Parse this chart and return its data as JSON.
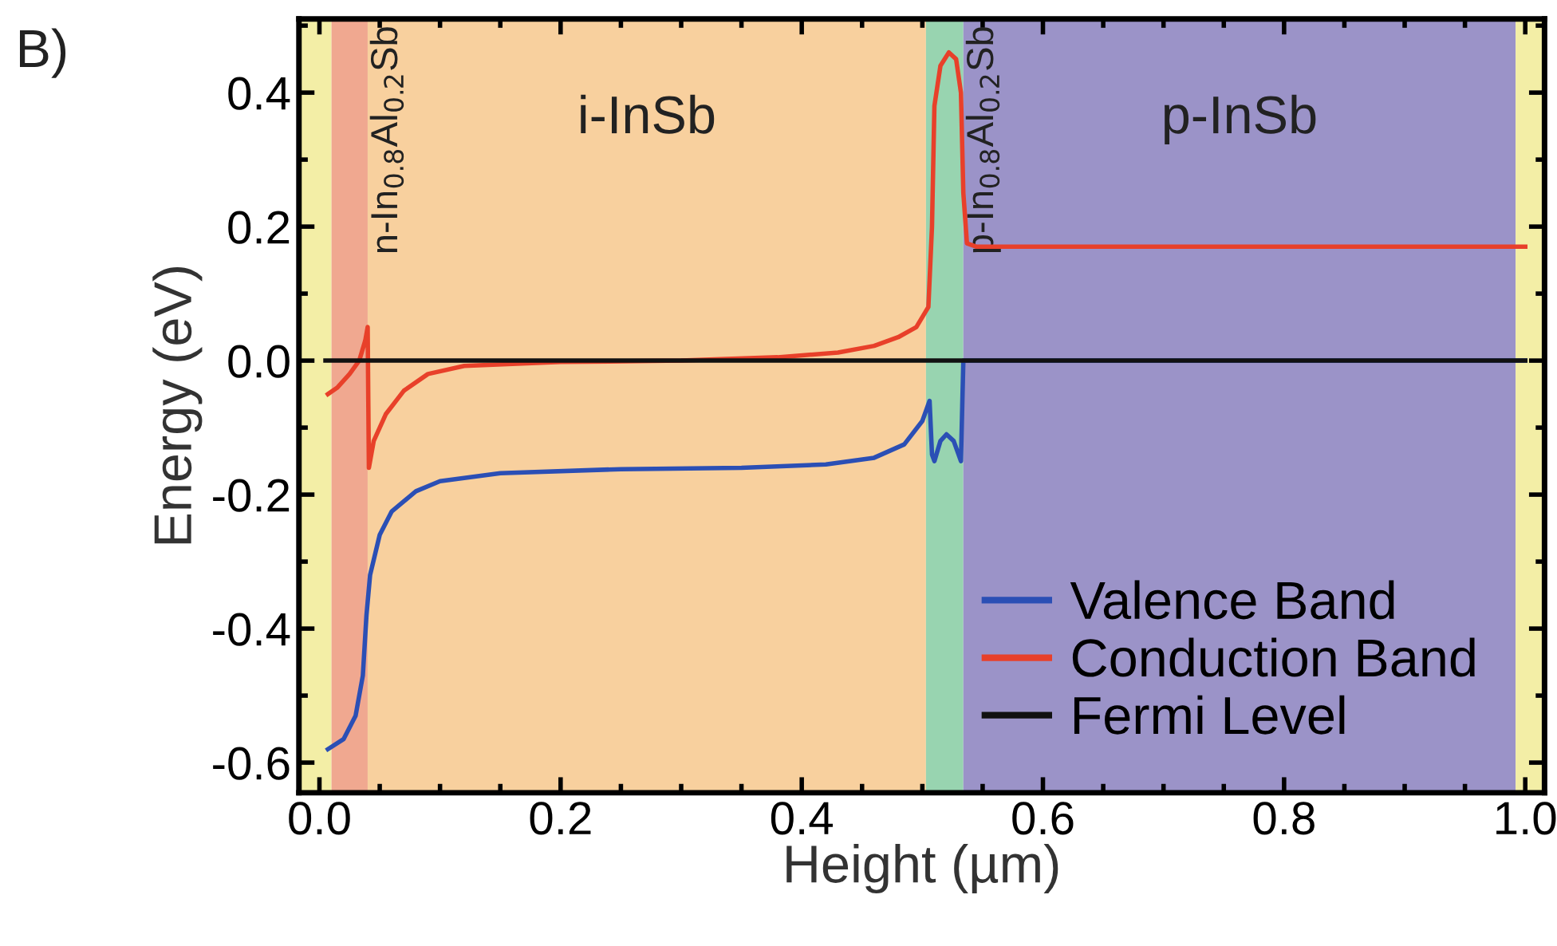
{
  "chart_data": {
    "type": "line",
    "xlabel": "Height (µm)",
    "ylabel": "Energy (eV)",
    "annotations": [
      "B)"
    ],
    "xlim": [
      -0.017,
      1.016
    ],
    "ylim": [
      -0.645,
      0.51
    ],
    "xticks": [
      {
        "value": 0.0,
        "label": "0.0"
      },
      0.2,
      0.4,
      0.6,
      0.8,
      {
        "value": 1.0,
        "label": "1.0"
      }
    ],
    "yticks": [
      -0.6,
      -0.4,
      -0.2,
      {
        "value": 0.0,
        "label": "0.0"
      },
      0.2,
      0.4
    ],
    "bands": [
      {
        "axis": "x",
        "from": -0.017,
        "to": 0.01,
        "color": "#f3eea6"
      },
      {
        "axis": "x",
        "from": 0.01,
        "to": 0.04,
        "color": "#f0a890",
        "label": "n-In$_{0.8}$Al$_{0.2}$Sb"
      },
      {
        "axis": "x",
        "from": 0.04,
        "to": 0.503,
        "color": "#f8d09e",
        "label": "i-InSb"
      },
      {
        "axis": "x",
        "from": 0.503,
        "to": 0.534,
        "color": "#98d4b0",
        "label": "p-In$_{0.8}$Al$_{0.2}$Sb"
      },
      {
        "axis": "x",
        "from": 0.534,
        "to": 0.992,
        "color": "#9b93c8",
        "label": "p-InSb"
      },
      {
        "axis": "x",
        "from": 0.992,
        "to": 1.016,
        "color": "#f3eea6"
      }
    ],
    "series": [
      {
        "name": "Valence Band",
        "color": "#2b4fb5",
        "x": [
          0.007,
          0.02,
          0.03,
          0.036,
          0.039,
          0.042,
          0.05,
          0.06,
          0.08,
          0.1,
          0.15,
          0.25,
          0.35,
          0.42,
          0.46,
          0.485,
          0.5,
          0.506,
          0.508,
          0.51,
          0.515,
          0.52,
          0.526,
          0.532,
          0.534,
          1.0
        ],
        "values": [
          -0.58,
          -0.565,
          -0.53,
          -0.47,
          -0.38,
          -0.32,
          -0.26,
          -0.225,
          -0.195,
          -0.18,
          -0.168,
          -0.162,
          -0.16,
          -0.155,
          -0.145,
          -0.125,
          -0.09,
          -0.06,
          -0.14,
          -0.15,
          -0.12,
          -0.11,
          -0.12,
          -0.15,
          0.0,
          0.0
        ]
      },
      {
        "name": "Conduction Band",
        "color": "#e8402a",
        "x": [
          0.007,
          0.015,
          0.025,
          0.033,
          0.038,
          0.04,
          0.041,
          0.045,
          0.055,
          0.07,
          0.09,
          0.12,
          0.2,
          0.3,
          0.38,
          0.43,
          0.46,
          0.48,
          0.495,
          0.505,
          0.508,
          0.51,
          0.515,
          0.522,
          0.528,
          0.532,
          0.534,
          0.537,
          0.545,
          1.0
        ],
        "values": [
          -0.05,
          -0.04,
          -0.02,
          0.0,
          0.03,
          0.05,
          -0.16,
          -0.12,
          -0.08,
          -0.045,
          -0.02,
          -0.008,
          -0.002,
          0.0,
          0.005,
          0.012,
          0.022,
          0.035,
          0.05,
          0.08,
          0.2,
          0.38,
          0.44,
          0.46,
          0.45,
          0.4,
          0.25,
          0.175,
          0.17,
          0.17
        ]
      },
      {
        "name": "Fermi Level",
        "color": "#111111",
        "x": [
          0.005,
          1.0
        ],
        "values": [
          0.0,
          0.0
        ]
      }
    ],
    "legend": "bottom right",
    "grid": false,
    "marker": "none",
    "line_style": "solid"
  }
}
